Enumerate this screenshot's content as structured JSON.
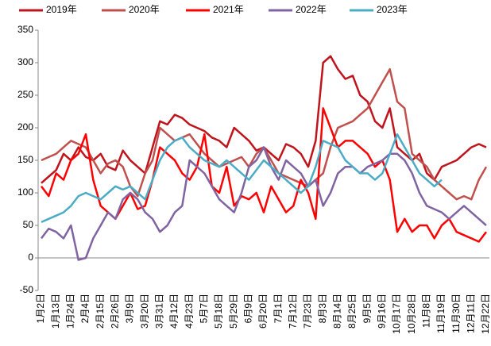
{
  "chart_data": {
    "type": "line",
    "categories": [
      "1月2日",
      null,
      "1月13日",
      null,
      "1月24日",
      null,
      "2月4日",
      null,
      "2月15日",
      null,
      "2月26日",
      null,
      "3月9日",
      null,
      "3月20日",
      null,
      "3月31日",
      null,
      "4月12日",
      null,
      "4月23日",
      null,
      "5月7日",
      null,
      "5月18日",
      null,
      "5月29日",
      null,
      "6月9日",
      null,
      "6月20日",
      null,
      "7月1日",
      null,
      "7月12日",
      null,
      "7月23日",
      null,
      "8月3日",
      null,
      "8月14日",
      null,
      "8月25日",
      null,
      "9月5日",
      null,
      "9月16日",
      null,
      "10月17日",
      null,
      "10月28日",
      null,
      "11月8日",
      null,
      "11月19日",
      null,
      "11月30日",
      null,
      "12月11日",
      null,
      "12月22日"
    ],
    "series": [
      {
        "name": "2019年",
        "color": "#c0141c",
        "values": [
          115,
          125,
          135,
          160,
          150,
          170,
          155,
          150,
          160,
          140,
          135,
          165,
          150,
          140,
          130,
          170,
          210,
          205,
          220,
          215,
          205,
          200,
          195,
          185,
          180,
          170,
          200,
          190,
          180,
          165,
          170,
          160,
          150,
          175,
          170,
          160,
          140,
          180,
          300,
          310,
          290,
          275,
          280,
          250,
          240,
          210,
          200,
          230,
          170,
          160,
          150,
          160,
          130,
          120,
          140,
          145,
          150,
          160,
          170,
          175,
          170
        ]
      },
      {
        "name": "2020年",
        "color": "#c0504d",
        "values": [
          150,
          155,
          160,
          170,
          180,
          175,
          170,
          150,
          130,
          145,
          150,
          140,
          110,
          95,
          130,
          150,
          200,
          190,
          180,
          185,
          190,
          175,
          160,
          150,
          140,
          145,
          150,
          155,
          140,
          160,
          170,
          150,
          130,
          125,
          120,
          115,
          110,
          120,
          130,
          170,
          200,
          205,
          210,
          220,
          230,
          250,
          270,
          290,
          240,
          230,
          160,
          150,
          140,
          120,
          110,
          100,
          90,
          95,
          90,
          120,
          140
        ]
      },
      {
        "name": "2021年",
        "color": "#ff0000",
        "values": [
          110,
          95,
          130,
          120,
          150,
          160,
          190,
          120,
          80,
          70,
          60,
          80,
          100,
          75,
          80,
          120,
          170,
          160,
          150,
          130,
          120,
          140,
          190,
          110,
          100,
          140,
          80,
          95,
          90,
          100,
          70,
          110,
          90,
          70,
          80,
          120,
          100,
          60,
          230,
          200,
          170,
          180,
          180,
          170,
          160,
          140,
          150,
          120,
          40,
          60,
          40,
          50,
          50,
          30,
          50,
          60,
          40,
          35,
          30,
          25,
          40
        ]
      },
      {
        "name": "2022年",
        "color": "#8064a2",
        "values": [
          30,
          45,
          40,
          30,
          50,
          -3,
          0,
          30,
          50,
          70,
          60,
          90,
          100,
          90,
          70,
          60,
          40,
          50,
          70,
          80,
          150,
          140,
          130,
          110,
          90,
          80,
          70,
          100,
          140,
          150,
          170,
          140,
          120,
          150,
          140,
          130,
          110,
          120,
          80,
          100,
          130,
          140,
          140,
          130,
          140,
          145,
          150,
          160,
          160,
          150,
          130,
          100,
          80,
          75,
          70,
          60,
          70,
          80,
          70,
          60,
          50
        ]
      },
      {
        "name": "2023年",
        "color": "#4bacc6",
        "values": [
          55,
          60,
          65,
          70,
          80,
          95,
          100,
          95,
          90,
          100,
          110,
          105,
          110,
          100,
          90,
          120,
          150,
          170,
          180,
          185,
          170,
          160,
          150,
          145,
          140,
          150,
          140,
          130,
          120,
          135,
          150,
          140,
          130,
          120,
          110,
          100,
          110,
          140,
          180,
          175,
          170,
          150,
          140,
          130,
          130,
          120,
          130,
          160,
          190,
          170,
          150,
          130,
          120,
          110,
          120,
          null,
          null,
          null,
          null,
          null,
          null
        ]
      }
    ],
    "ylim": [
      -50,
      350
    ],
    "yticks": [
      -50,
      0,
      50,
      100,
      150,
      200,
      250,
      300,
      350
    ],
    "legend": "top"
  }
}
